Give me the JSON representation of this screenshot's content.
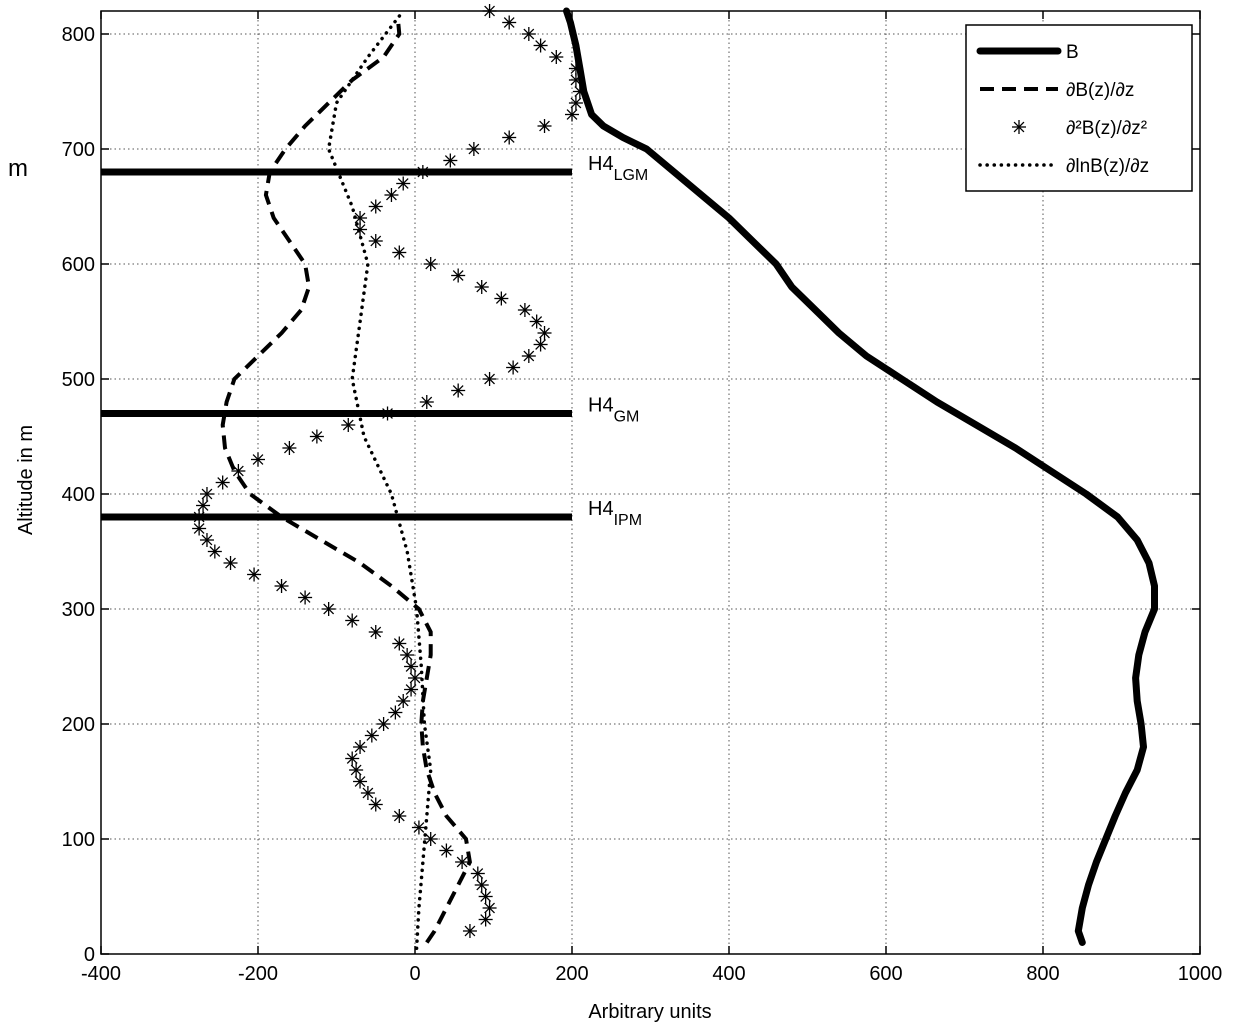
{
  "chart_data": {
    "type": "line",
    "xlabel": "Arbitrary units",
    "ylabel": "Altitude in m",
    "xlim": [
      -400,
      1000
    ],
    "ylim": [
      0,
      820
    ],
    "xticks": [
      -400,
      -200,
      0,
      200,
      400,
      600,
      800,
      1000
    ],
    "yticks": [
      0,
      100,
      200,
      300,
      400,
      500,
      600,
      700,
      800
    ],
    "grid": true,
    "legend_position": "top-right",
    "stray_text": "m",
    "series": [
      {
        "name": "B",
        "style": "thick-solid",
        "points": [
          [
            850,
            10
          ],
          [
            845,
            20
          ],
          [
            850,
            40
          ],
          [
            858,
            60
          ],
          [
            868,
            80
          ],
          [
            880,
            100
          ],
          [
            892,
            120
          ],
          [
            905,
            140
          ],
          [
            920,
            160
          ],
          [
            928,
            180
          ],
          [
            925,
            200
          ],
          [
            920,
            220
          ],
          [
            918,
            240
          ],
          [
            922,
            260
          ],
          [
            930,
            280
          ],
          [
            942,
            300
          ],
          [
            942,
            320
          ],
          [
            935,
            340
          ],
          [
            920,
            360
          ],
          [
            895,
            380
          ],
          [
            855,
            400
          ],
          [
            810,
            420
          ],
          [
            765,
            440
          ],
          [
            715,
            460
          ],
          [
            665,
            480
          ],
          [
            620,
            500
          ],
          [
            575,
            520
          ],
          [
            540,
            540
          ],
          [
            510,
            560
          ],
          [
            480,
            580
          ],
          [
            460,
            600
          ],
          [
            430,
            620
          ],
          [
            400,
            640
          ],
          [
            365,
            660
          ],
          [
            330,
            680
          ],
          [
            295,
            700
          ],
          [
            265,
            710
          ],
          [
            240,
            720
          ],
          [
            225,
            730
          ],
          [
            215,
            750
          ],
          [
            210,
            770
          ],
          [
            205,
            790
          ],
          [
            198,
            810
          ],
          [
            193,
            820
          ]
        ]
      },
      {
        "name": "∂B(z)/∂z",
        "style": "dashed",
        "points": [
          [
            15,
            10
          ],
          [
            25,
            20
          ],
          [
            40,
            40
          ],
          [
            55,
            60
          ],
          [
            70,
            80
          ],
          [
            65,
            100
          ],
          [
            40,
            120
          ],
          [
            25,
            140
          ],
          [
            15,
            160
          ],
          [
            10,
            180
          ],
          [
            8,
            200
          ],
          [
            10,
            220
          ],
          [
            15,
            240
          ],
          [
            20,
            260
          ],
          [
            20,
            280
          ],
          [
            5,
            300
          ],
          [
            -30,
            320
          ],
          [
            -70,
            340
          ],
          [
            -120,
            360
          ],
          [
            -170,
            380
          ],
          [
            -210,
            400
          ],
          [
            -230,
            420
          ],
          [
            -242,
            440
          ],
          [
            -245,
            460
          ],
          [
            -240,
            480
          ],
          [
            -230,
            500
          ],
          [
            -200,
            520
          ],
          [
            -170,
            540
          ],
          [
            -145,
            560
          ],
          [
            -135,
            580
          ],
          [
            -140,
            600
          ],
          [
            -160,
            620
          ],
          [
            -180,
            640
          ],
          [
            -190,
            660
          ],
          [
            -185,
            680
          ],
          [
            -165,
            700
          ],
          [
            -140,
            720
          ],
          [
            -110,
            740
          ],
          [
            -80,
            760
          ],
          [
            -40,
            780
          ],
          [
            -20,
            800
          ],
          [
            -22,
            815
          ]
        ]
      },
      {
        "name": "∂²B(z)/∂z²",
        "style": "asterisk",
        "points": [
          [
            70,
            20
          ],
          [
            90,
            30
          ],
          [
            95,
            40
          ],
          [
            90,
            50
          ],
          [
            85,
            60
          ],
          [
            80,
            70
          ],
          [
            60,
            80
          ],
          [
            40,
            90
          ],
          [
            20,
            100
          ],
          [
            5,
            110
          ],
          [
            -20,
            120
          ],
          [
            -50,
            130
          ],
          [
            -60,
            140
          ],
          [
            -70,
            150
          ],
          [
            -75,
            160
          ],
          [
            -80,
            170
          ],
          [
            -70,
            180
          ],
          [
            -55,
            190
          ],
          [
            -40,
            200
          ],
          [
            -25,
            210
          ],
          [
            -15,
            220
          ],
          [
            -5,
            230
          ],
          [
            0,
            240
          ],
          [
            -5,
            250
          ],
          [
            -10,
            260
          ],
          [
            -20,
            270
          ],
          [
            -50,
            280
          ],
          [
            -80,
            290
          ],
          [
            -110,
            300
          ],
          [
            -140,
            310
          ],
          [
            -170,
            320
          ],
          [
            -205,
            330
          ],
          [
            -235,
            340
          ],
          [
            -255,
            350
          ],
          [
            -265,
            360
          ],
          [
            -275,
            370
          ],
          [
            -275,
            380
          ],
          [
            -270,
            390
          ],
          [
            -265,
            400
          ],
          [
            -245,
            410
          ],
          [
            -225,
            420
          ],
          [
            -200,
            430
          ],
          [
            -160,
            440
          ],
          [
            -125,
            450
          ],
          [
            -85,
            460
          ],
          [
            -35,
            470
          ],
          [
            15,
            480
          ],
          [
            55,
            490
          ],
          [
            95,
            500
          ],
          [
            125,
            510
          ],
          [
            145,
            520
          ],
          [
            160,
            530
          ],
          [
            165,
            540
          ],
          [
            155,
            550
          ],
          [
            140,
            560
          ],
          [
            110,
            570
          ],
          [
            85,
            580
          ],
          [
            55,
            590
          ],
          [
            20,
            600
          ],
          [
            -20,
            610
          ],
          [
            -50,
            620
          ],
          [
            -70,
            630
          ],
          [
            -70,
            640
          ],
          [
            -50,
            650
          ],
          [
            -30,
            660
          ],
          [
            -15,
            670
          ],
          [
            10,
            680
          ],
          [
            45,
            690
          ],
          [
            75,
            700
          ],
          [
            120,
            710
          ],
          [
            165,
            720
          ],
          [
            200,
            730
          ],
          [
            205,
            740
          ],
          [
            210,
            750
          ],
          [
            205,
            760
          ],
          [
            205,
            770
          ],
          [
            180,
            780
          ],
          [
            160,
            790
          ],
          [
            145,
            800
          ],
          [
            120,
            810
          ],
          [
            95,
            820
          ]
        ]
      },
      {
        "name": "∂lnB(z)/∂z",
        "style": "dotted",
        "points": [
          [
            2,
            5
          ],
          [
            5,
            40
          ],
          [
            10,
            80
          ],
          [
            15,
            120
          ],
          [
            20,
            160
          ],
          [
            12,
            200
          ],
          [
            8,
            250
          ],
          [
            2,
            300
          ],
          [
            -10,
            350
          ],
          [
            -30,
            400
          ],
          [
            -65,
            450
          ],
          [
            -80,
            500
          ],
          [
            -70,
            550
          ],
          [
            -60,
            600
          ],
          [
            -80,
            650
          ],
          [
            -110,
            700
          ],
          [
            -100,
            740
          ],
          [
            -60,
            780
          ],
          [
            -15,
            820
          ]
        ]
      }
    ],
    "horizontal_lines": [
      {
        "y": 680,
        "x_from": -400,
        "x_to": 200,
        "label_main": "H4",
        "label_sub": "LGM"
      },
      {
        "y": 470,
        "x_from": -400,
        "x_to": 200,
        "label_main": "H4",
        "label_sub": "GM"
      },
      {
        "y": 380,
        "x_from": -400,
        "x_to": 200,
        "label_main": "H4",
        "label_sub": "IPM"
      }
    ],
    "legend": [
      {
        "label": "B",
        "style": "thick-solid"
      },
      {
        "label": "∂B(z)/∂z",
        "style": "dashed"
      },
      {
        "label": "∂²B(z)/∂z²",
        "style": "asterisk"
      },
      {
        "label": "∂lnB(z)/∂z",
        "style": "dotted"
      }
    ]
  }
}
